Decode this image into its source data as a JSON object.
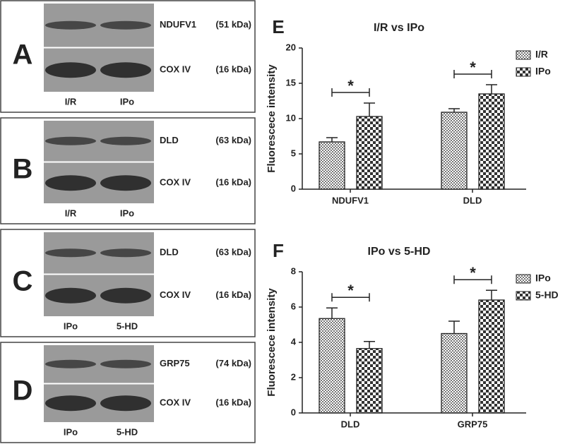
{
  "blots": [
    {
      "letter": "A",
      "rows": [
        {
          "protein": "NDUFV1",
          "size": "(51 kDa)"
        },
        {
          "protein": "COX IV",
          "size": "(16 kDa)"
        }
      ],
      "lanes": [
        "I/R",
        "IPo"
      ]
    },
    {
      "letter": "B",
      "rows": [
        {
          "protein": "DLD",
          "size": "(63 kDa)"
        },
        {
          "protein": "COX IV",
          "size": "(16 kDa)"
        }
      ],
      "lanes": [
        "I/R",
        "IPo"
      ]
    },
    {
      "letter": "C",
      "rows": [
        {
          "protein": "DLD",
          "size": "(63 kDa)"
        },
        {
          "protein": "COX IV",
          "size": "(16 kDa)"
        }
      ],
      "lanes": [
        "IPo",
        "5-HD"
      ]
    },
    {
      "letter": "D",
      "rows": [
        {
          "protein": "GRP75",
          "size": "(74 kDa)"
        },
        {
          "protein": "COX IV",
          "size": "(16 kDa)"
        }
      ],
      "lanes": [
        "IPo",
        "5-HD"
      ]
    }
  ],
  "chart_data": [
    {
      "type": "bar",
      "panel": "E",
      "title": "I/R vs IPo",
      "y_label": "Fluorescece intensity",
      "categories": [
        "NDUFV1",
        "DLD"
      ],
      "series": [
        {
          "name": "I/R",
          "color": "#777777",
          "values": [
            6.7,
            10.9
          ],
          "errors": [
            0.6,
            0.5
          ]
        },
        {
          "name": "IPo",
          "color": "#333333",
          "values": [
            10.3,
            13.5
          ],
          "errors": [
            1.9,
            1.3
          ]
        }
      ],
      "annotations": [
        "*",
        "*"
      ],
      "ylim": [
        0,
        20
      ],
      "yticks": [
        0,
        5,
        10,
        15,
        20
      ]
    },
    {
      "type": "bar",
      "panel": "F",
      "title": "IPo vs 5-HD",
      "y_label": "Fluorescece intensity",
      "categories": [
        "DLD",
        "GRP75"
      ],
      "series": [
        {
          "name": "IPo",
          "color": "#777777",
          "values": [
            5.35,
            4.5
          ],
          "errors": [
            0.6,
            0.7
          ]
        },
        {
          "name": "5-HD",
          "color": "#333333",
          "values": [
            3.65,
            6.4
          ],
          "errors": [
            0.4,
            0.55
          ]
        }
      ],
      "annotations": [
        "*",
        "*"
      ],
      "ylim": [
        0,
        8
      ],
      "yticks": [
        0,
        2,
        4,
        6,
        8
      ]
    }
  ]
}
